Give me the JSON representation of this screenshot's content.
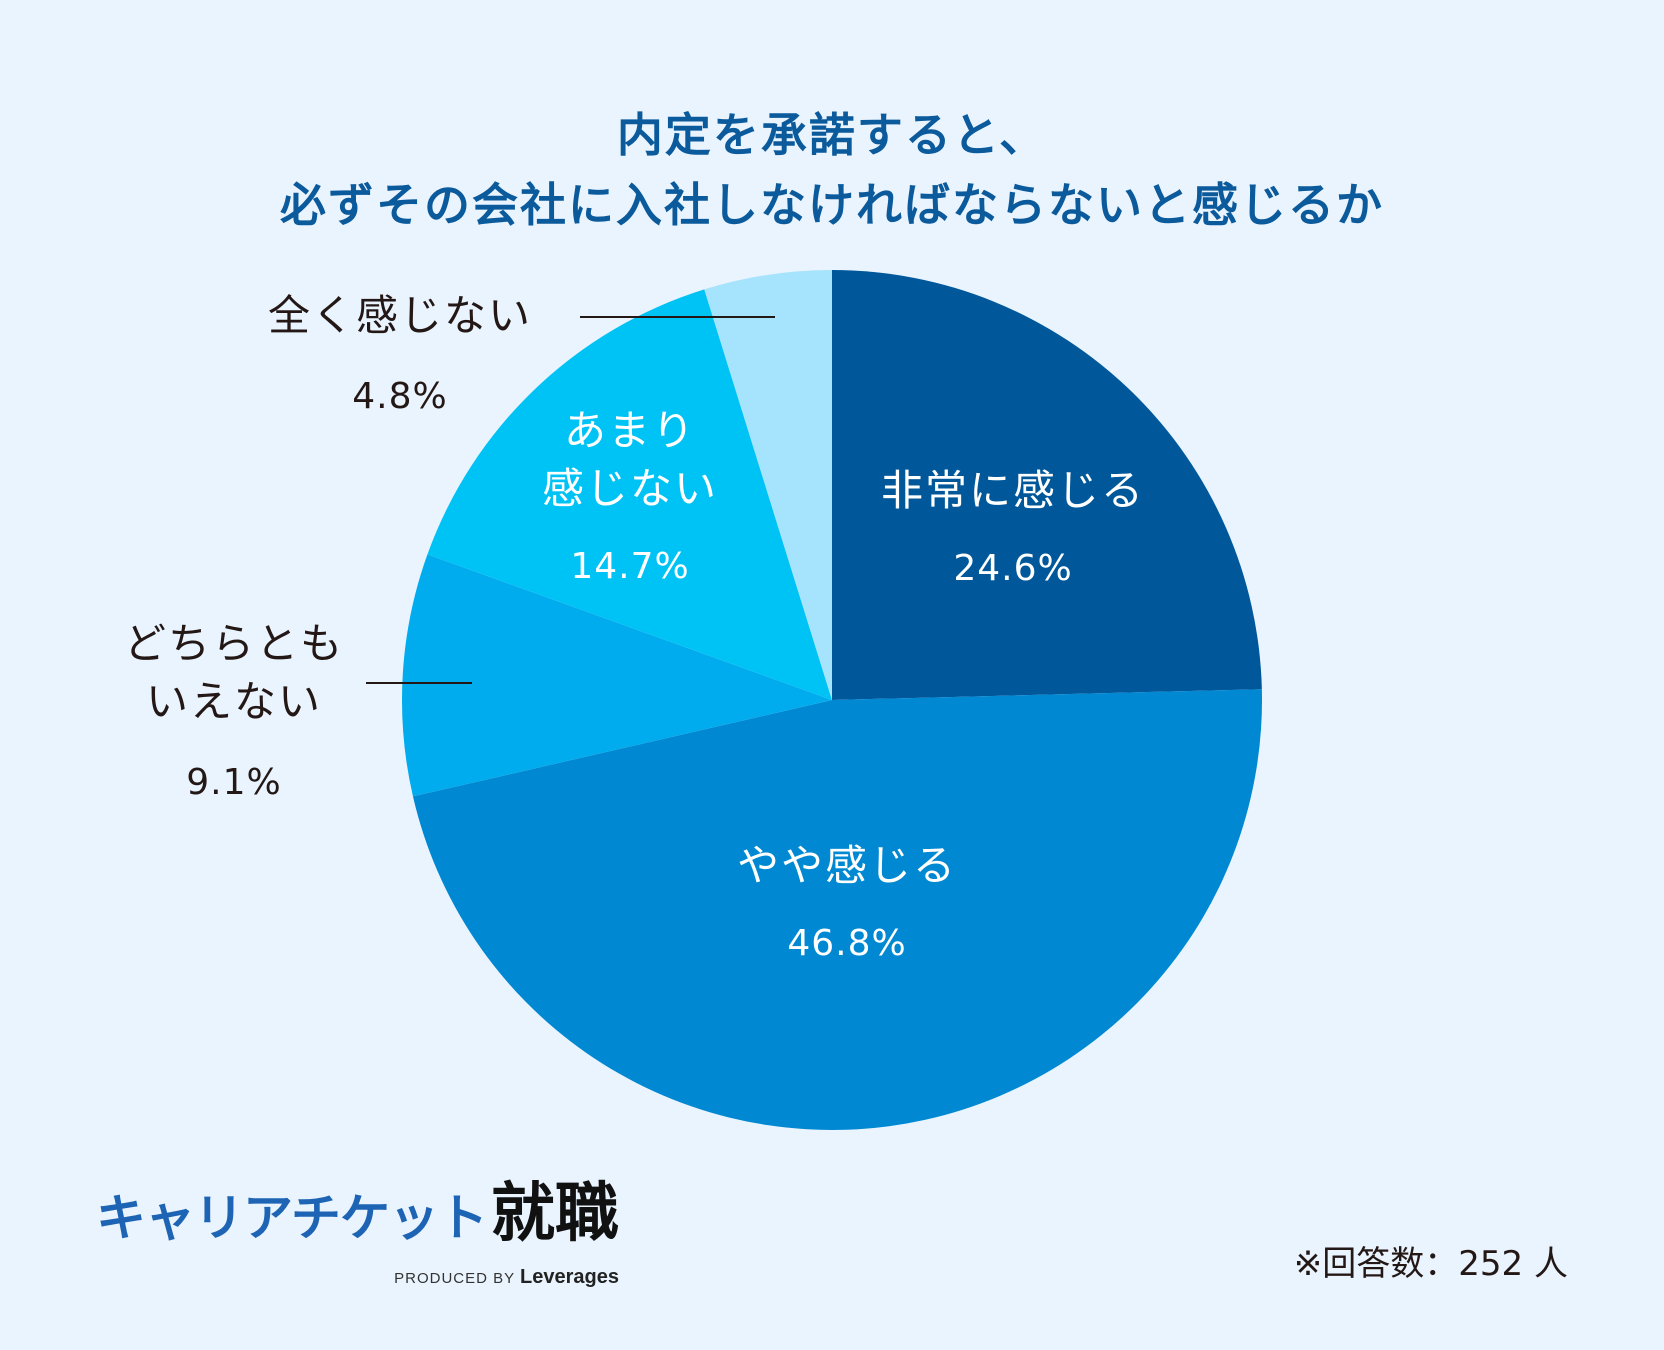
{
  "title": {
    "line1": "内定を承諾すると、",
    "line2": "必ずその会社に入社しなければならないと感じるか"
  },
  "chart_data": {
    "type": "pie",
    "title": "内定を承諾すると、必ずその会社に入社しなければならないと感じるか",
    "start_angle": "12 o'clock",
    "direction": "clockwise",
    "slices": [
      {
        "label_lines": [
          "非常に感じる"
        ],
        "value": 24.6,
        "value_text": "24.6",
        "color": "#00589a",
        "label_position": "inside"
      },
      {
        "label_lines": [
          "やや感じる"
        ],
        "value": 46.8,
        "value_text": "46.8",
        "color": "#0088d2",
        "label_position": "inside"
      },
      {
        "label_lines": [
          "どちらとも",
          "いえない"
        ],
        "value": 9.1,
        "value_text": "9.1",
        "color": "#00aced",
        "label_position": "outside-left"
      },
      {
        "label_lines": [
          "あまり",
          "感じない"
        ],
        "value": 14.7,
        "value_text": "14.7",
        "color": "#00c3f5",
        "label_position": "inside"
      },
      {
        "label_lines": [
          "全く感じない"
        ],
        "value": 4.8,
        "value_text": "4.8",
        "color": "#a6e3fc",
        "label_position": "outside-left"
      }
    ],
    "unit": "%"
  },
  "logo": {
    "kana": "キャリアチケット",
    "kanji": "就職",
    "sub_prefix": "PRODUCED BY",
    "sub_brand": "Leverages"
  },
  "note": "※回答数：252 人"
}
